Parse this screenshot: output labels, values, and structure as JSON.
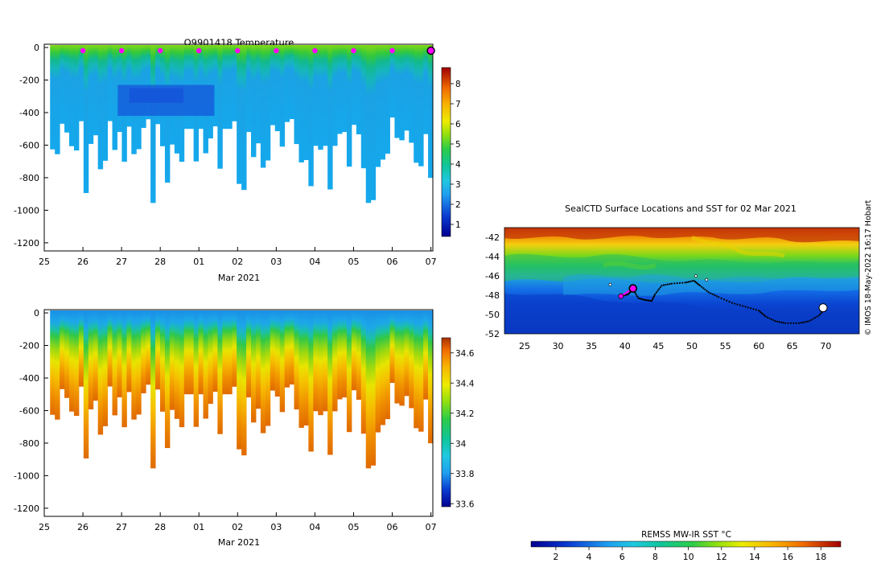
{
  "chart_data": [
    {
      "type": "heatmap",
      "title": "Q9901418  Temperature",
      "xlabel": "Mar 2021",
      "ylabel": "",
      "x_tick_labels": [
        "25",
        "26",
        "27",
        "28",
        "01",
        "02",
        "03",
        "04",
        "05",
        "06",
        "07"
      ],
      "xlim": [
        0,
        10.05
      ],
      "ylim": [
        -1250,
        20
      ],
      "y_ticks": [
        0,
        -200,
        -400,
        -600,
        -800,
        -1000,
        -1200
      ],
      "colorbar_ticks": [
        1,
        2,
        3,
        4,
        5,
        6,
        7,
        8
      ],
      "colorbar_range": [
        0.4,
        8.8
      ],
      "surface_markers_x": [
        1,
        2,
        3,
        4,
        5,
        6,
        7,
        8,
        9
      ],
      "latest_marker_x": 10
    },
    {
      "type": "heatmap",
      "title": "",
      "xlabel": "Mar 2021",
      "ylabel": "",
      "x_tick_labels": [
        "25",
        "26",
        "27",
        "28",
        "01",
        "02",
        "03",
        "04",
        "05",
        "06",
        "07"
      ],
      "xlim": [
        0,
        10.05
      ],
      "ylim": [
        -1250,
        20
      ],
      "y_ticks": [
        0,
        -200,
        -400,
        -600,
        -800,
        -1000,
        -1200
      ],
      "colorbar_ticks": [
        33.6,
        33.8,
        34,
        34.2,
        34.4,
        34.6
      ],
      "colorbar_range": [
        33.58,
        34.7
      ]
    },
    {
      "type": "heatmap",
      "title": "SealCTD Surface Locations and SST for 02 Mar 2021",
      "xlabel": "",
      "ylabel": "",
      "x_ticks": [
        25,
        30,
        35,
        40,
        45,
        50,
        55,
        60,
        65,
        70
      ],
      "y_ticks": [
        -42,
        -44,
        -46,
        -48,
        -50,
        -52
      ],
      "xlim": [
        22,
        75
      ],
      "ylim": [
        -52,
        -41
      ],
      "track": [
        [
          39.5,
          -48.1
        ],
        [
          40.5,
          -47.9
        ],
        [
          41.2,
          -47.4
        ],
        [
          42,
          -48.3
        ],
        [
          43,
          -48.5
        ],
        [
          44,
          -48.6
        ],
        [
          44.5,
          -47.9
        ],
        [
          45.5,
          -47.0
        ],
        [
          47,
          -46.8
        ],
        [
          49,
          -46.7
        ],
        [
          50.3,
          -46.5
        ],
        [
          51.2,
          -47.0
        ],
        [
          52.5,
          -47.7
        ],
        [
          54,
          -48.2
        ],
        [
          56,
          -48.8
        ],
        [
          58,
          -49.2
        ],
        [
          60,
          -49.6
        ],
        [
          61,
          -50.2
        ],
        [
          62.5,
          -50.7
        ],
        [
          64,
          -50.9
        ],
        [
          66,
          -50.9
        ],
        [
          67.5,
          -50.7
        ],
        [
          69,
          -50.1
        ],
        [
          70,
          -49.3
        ]
      ],
      "current_position": [
        41.2,
        -47.3
      ],
      "start_position": [
        39.4,
        -48.1
      ],
      "colorbar_label": "REMSS MW-IR SST °C",
      "colorbar_ticks": [
        2,
        4,
        6,
        8,
        10,
        12,
        14,
        16,
        18
      ],
      "colorbar_range": [
        0.5,
        19.2
      ]
    }
  ],
  "credit": "© IMOS 18-May-2022 16:17 Hobart"
}
